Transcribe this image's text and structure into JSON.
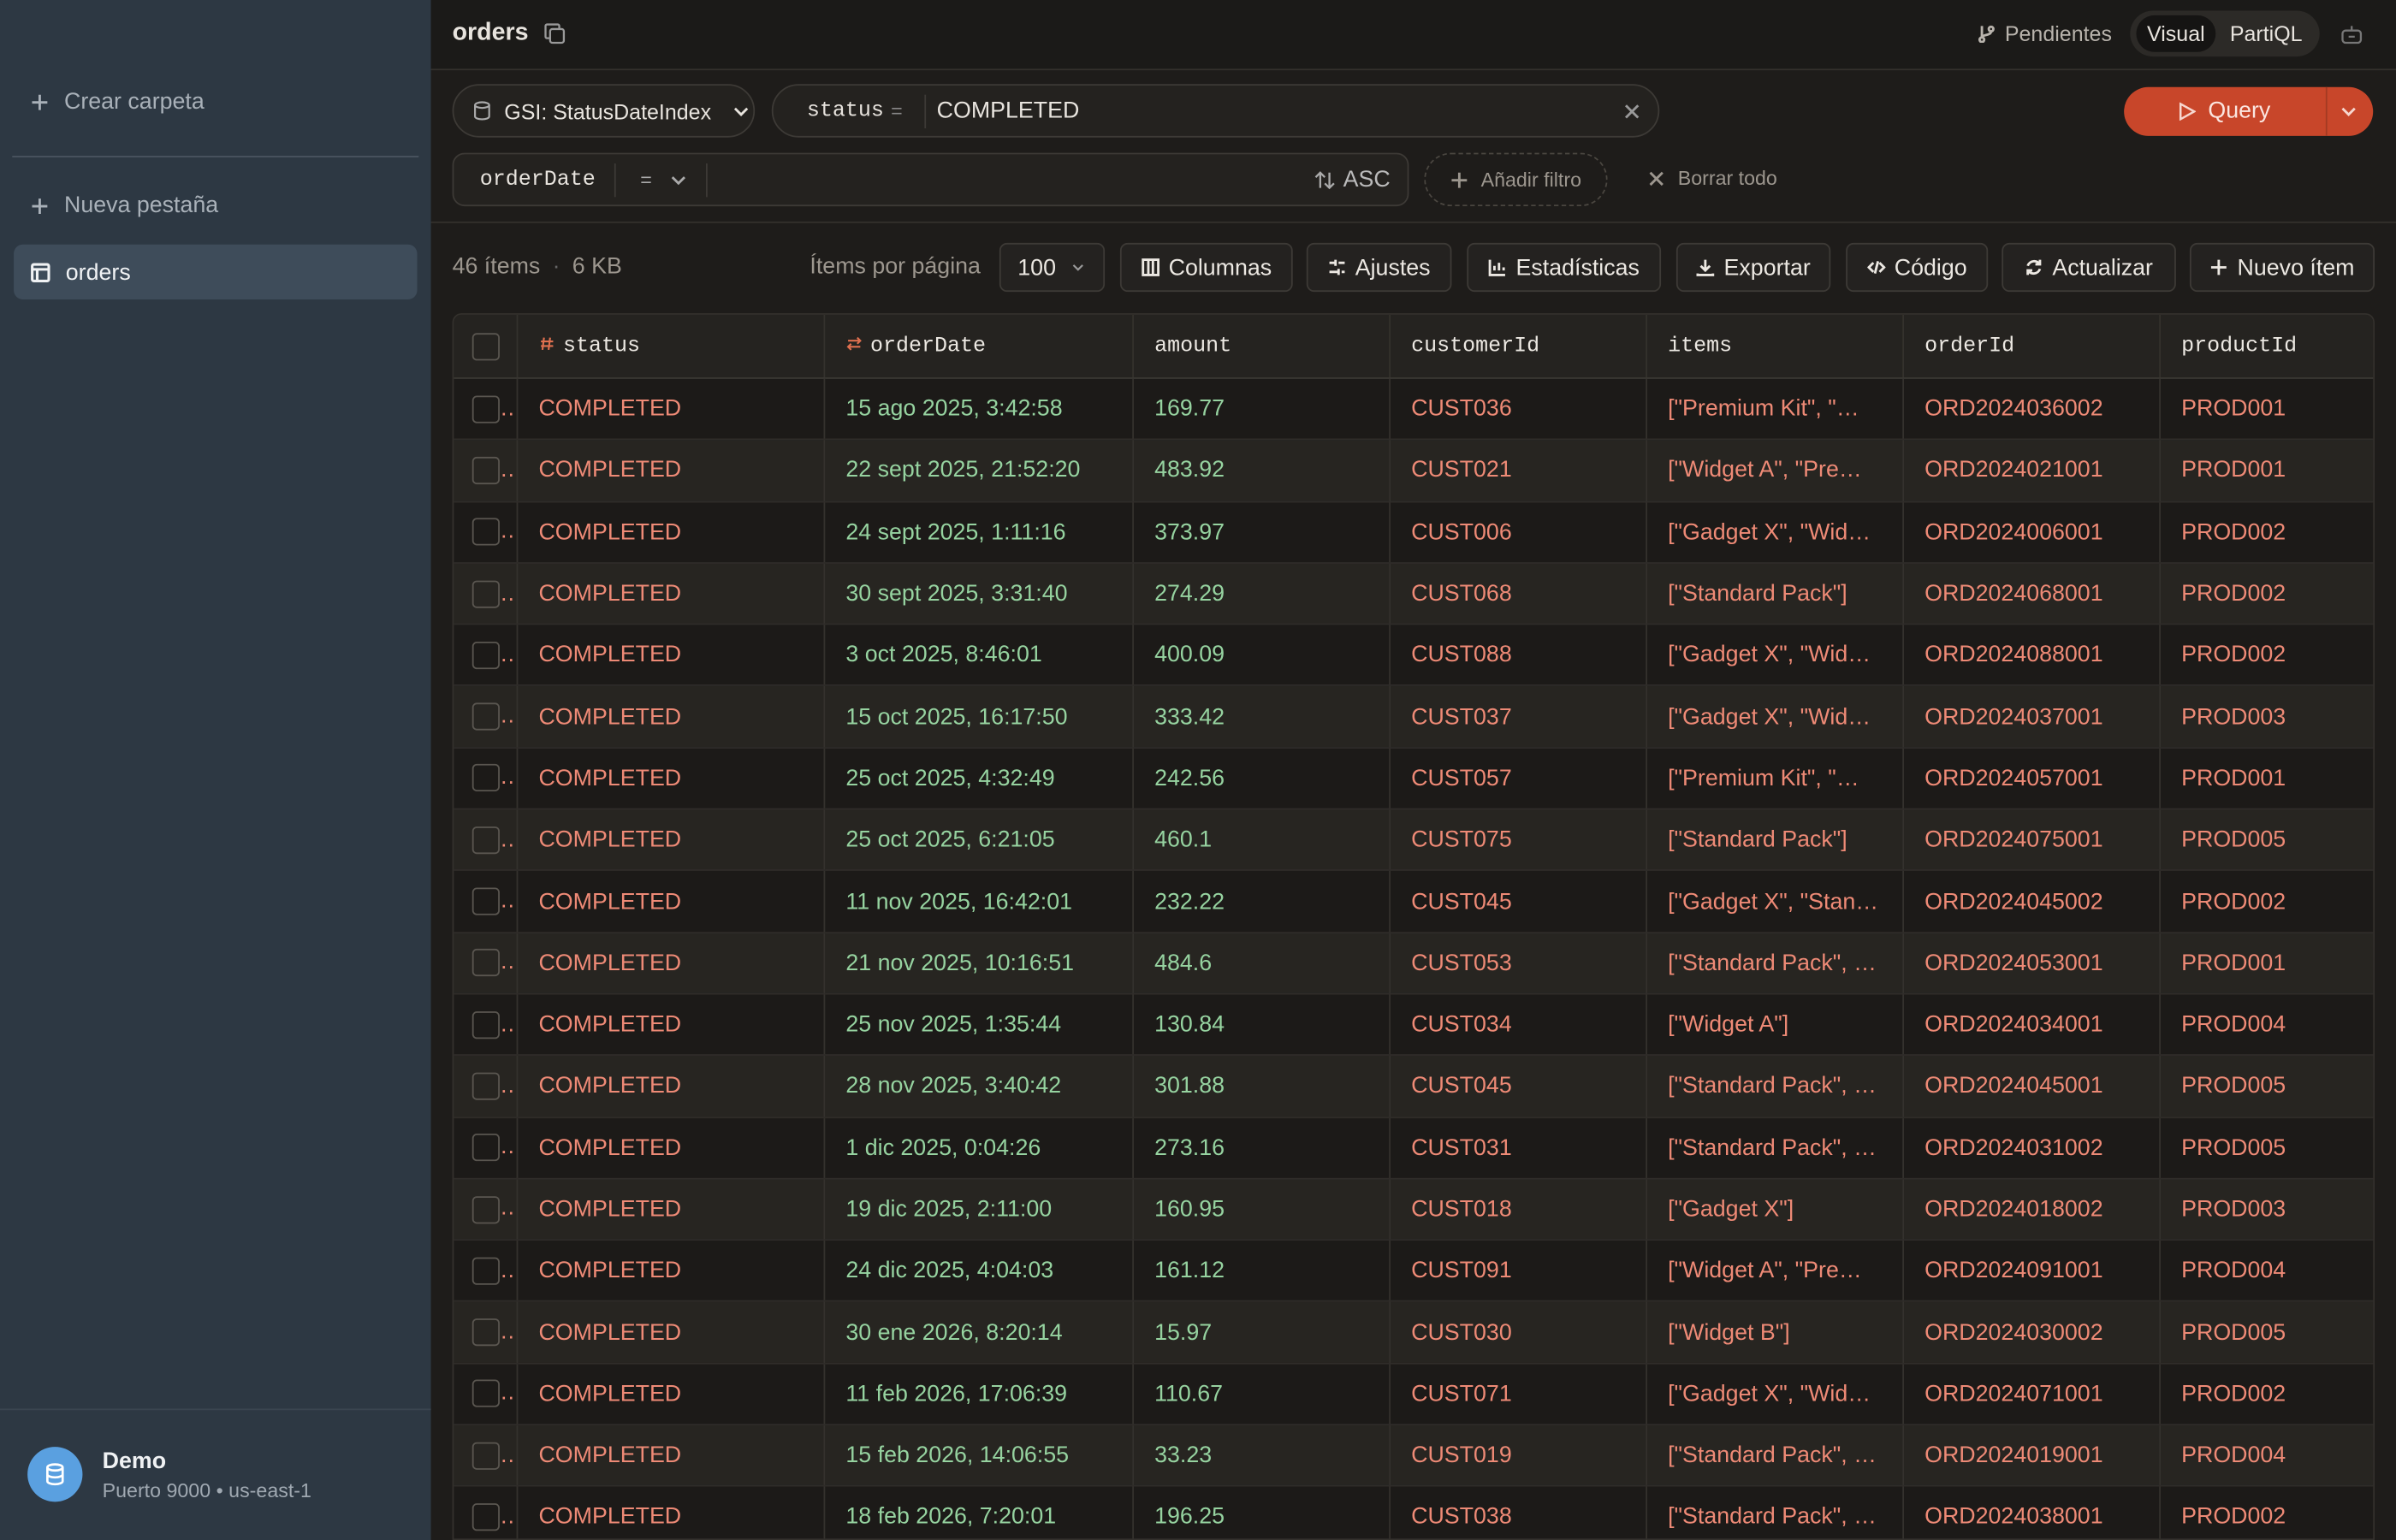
{
  "sidebar": {
    "create_folder": "Crear carpeta",
    "new_tab": "Nueva pestaña",
    "tabs": [
      "orders"
    ],
    "connection": {
      "name": "Demo",
      "detail": "Puerto 9000 • us-east-1"
    }
  },
  "header": {
    "title": "orders",
    "pending": "Pendientes",
    "modes": [
      "Visual",
      "PartiQL"
    ]
  },
  "query": {
    "index": "GSI: StatusDateIndex",
    "pk_name": "status",
    "pk_op": "=",
    "pk_value": "COMPLETED",
    "sk_name": "orderDate",
    "sk_op": "=",
    "sort": "ASC",
    "add_filter": "Añadir filtro",
    "clear_all": "Borrar todo",
    "run": "Query"
  },
  "toolbar": {
    "count": "46 ítems",
    "size": "6 KB",
    "per_page_label": "Ítems por página",
    "per_page": "100",
    "buttons": [
      "Columnas",
      "Ajustes",
      "Estadísticas",
      "Exportar",
      "Código",
      "Actualizar",
      "Nuevo ítem"
    ]
  },
  "table": {
    "columns": [
      "status",
      "orderDate",
      "amount",
      "customerId",
      "items",
      "orderId",
      "productId"
    ],
    "rows": [
      [
        "COMPLETED",
        "15 ago 2025, 3:42:58",
        "169.77",
        "CUST036",
        "[\"Premium Kit\", \"Wi…",
        "ORD2024036002",
        "PROD001"
      ],
      [
        "COMPLETED",
        "22 sept 2025, 21:52:20",
        "483.92",
        "CUST021",
        "[\"Widget A\", \"Premi…",
        "ORD2024021001",
        "PROD001"
      ],
      [
        "COMPLETED",
        "24 sept 2025, 1:11:16",
        "373.97",
        "CUST006",
        "[\"Gadget X\", \"Widg…",
        "ORD2024006001",
        "PROD002"
      ],
      [
        "COMPLETED",
        "30 sept 2025, 3:31:40",
        "274.29",
        "CUST068",
        "[\"Standard Pack\"]",
        "ORD2024068001",
        "PROD002"
      ],
      [
        "COMPLETED",
        "3 oct 2025, 8:46:01",
        "400.09",
        "CUST088",
        "[\"Gadget X\", \"Widg…",
        "ORD2024088001",
        "PROD002"
      ],
      [
        "COMPLETED",
        "15 oct 2025, 16:17:50",
        "333.42",
        "CUST037",
        "[\"Gadget X\", \"Widg…",
        "ORD2024037001",
        "PROD003"
      ],
      [
        "COMPLETED",
        "25 oct 2025, 4:32:49",
        "242.56",
        "CUST057",
        "[\"Premium Kit\", \"Wi…",
        "ORD2024057001",
        "PROD001"
      ],
      [
        "COMPLETED",
        "25 oct 2025, 6:21:05",
        "460.1",
        "CUST075",
        "[\"Standard Pack\"]",
        "ORD2024075001",
        "PROD005"
      ],
      [
        "COMPLETED",
        "11 nov 2025, 16:42:01",
        "232.22",
        "CUST045",
        "[\"Gadget X\", \"Stand…",
        "ORD2024045002",
        "PROD002"
      ],
      [
        "COMPLETED",
        "21 nov 2025, 10:16:51",
        "484.6",
        "CUST053",
        "[\"Standard Pack\", \"…",
        "ORD2024053001",
        "PROD001"
      ],
      [
        "COMPLETED",
        "25 nov 2025, 1:35:44",
        "130.84",
        "CUST034",
        "[\"Widget A\"]",
        "ORD2024034001",
        "PROD004"
      ],
      [
        "COMPLETED",
        "28 nov 2025, 3:40:42",
        "301.88",
        "CUST045",
        "[\"Standard Pack\", \"…",
        "ORD2024045001",
        "PROD005"
      ],
      [
        "COMPLETED",
        "1 dic 2025, 0:04:26",
        "273.16",
        "CUST031",
        "[\"Standard Pack\", \"…",
        "ORD2024031002",
        "PROD005"
      ],
      [
        "COMPLETED",
        "19 dic 2025, 2:11:00",
        "160.95",
        "CUST018",
        "[\"Gadget X\"]",
        "ORD2024018002",
        "PROD003"
      ],
      [
        "COMPLETED",
        "24 dic 2025, 4:04:03",
        "161.12",
        "CUST091",
        "[\"Widget A\", \"Premi…",
        "ORD2024091001",
        "PROD004"
      ],
      [
        "COMPLETED",
        "30 ene 2026, 8:20:14",
        "15.97",
        "CUST030",
        "[\"Widget B\"]",
        "ORD2024030002",
        "PROD005"
      ],
      [
        "COMPLETED",
        "11 feb 2026, 17:06:39",
        "110.67",
        "CUST071",
        "[\"Gadget X\", \"Widg…",
        "ORD2024071001",
        "PROD002"
      ],
      [
        "COMPLETED",
        "15 feb 2026, 14:06:55",
        "33.23",
        "CUST019",
        "[\"Standard Pack\", \"…",
        "ORD2024019001",
        "PROD004"
      ],
      [
        "COMPLETED",
        "18 feb 2026, 7:20:01",
        "196.25",
        "CUST038",
        "[\"Standard Pack\", \"…",
        "ORD2024038001",
        "PROD002"
      ]
    ]
  }
}
